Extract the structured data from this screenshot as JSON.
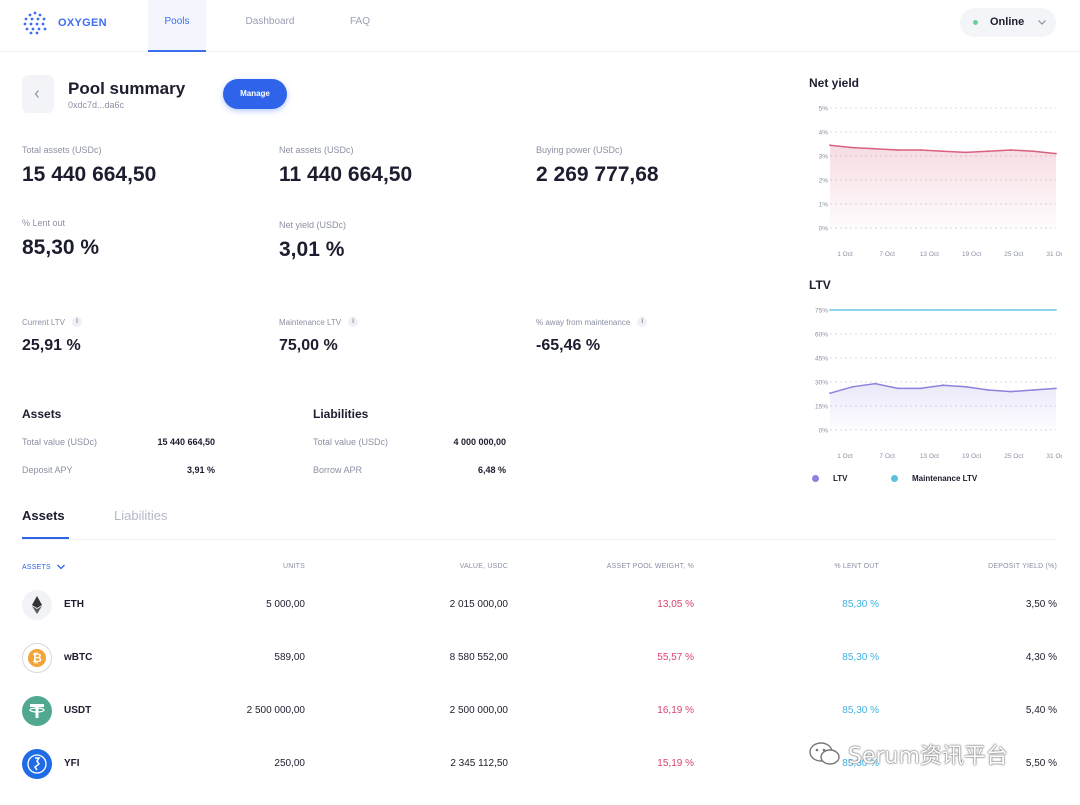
{
  "nav": {
    "brand": "OXYGEN",
    "tabs": [
      "Pools",
      "Dashboard",
      "FAQ"
    ],
    "status": "Online",
    "status_color": "#6ccf9b"
  },
  "header": {
    "title": "Pool summary",
    "address": "0xdc7d...da6c",
    "manage_label": "Manage"
  },
  "stats": {
    "total_assets_label": "Total assets (USDc)",
    "total_assets_value": "15 440 664,50",
    "net_assets_label": "Net assets (USDc)",
    "net_assets_value": "11 440 664,50",
    "buying_power_label": "Buying power (USDc)",
    "buying_power_value": "2 269 777,68",
    "lent_out_label": "% Lent out",
    "lent_out_value": "85,30 %",
    "net_yield_label": "Net yield (USDc)",
    "net_yield_value": "3,01 %",
    "current_ltv_label": "Current LTV",
    "current_ltv_value": "25,91 %",
    "maintenance_ltv_label": "Maintenance LTV",
    "maintenance_ltv_value": "75,00 %",
    "away_label": "% away from maintenance",
    "away_value": "-65,46 %"
  },
  "assets_summary": {
    "title": "Assets",
    "total_label": "Total value (USDc)",
    "total_value": "15 440 664,50",
    "apy_label": "Deposit APY",
    "apy_value": "3,91 %"
  },
  "liabilities_summary": {
    "title": "Liabilities",
    "total_label": "Total value (USDc)",
    "total_value": "4 000 000,00",
    "apr_label": "Borrow APR",
    "apr_value": "6,48 %"
  },
  "charts": {
    "net_yield_title": "Net yield",
    "ltv_title": "LTV",
    "legend_ltv": "LTV",
    "legend_maintenance": "Maintenance LTV",
    "colors": {
      "net_yield": "#d9607f",
      "ltv": "#8b82dc",
      "maintenance": "#7fcbe8"
    }
  },
  "chart_data": [
    {
      "type": "area",
      "title": "Net yield",
      "x": [
        "1 Oct",
        "4 Oct",
        "7 Oct",
        "10 Oct",
        "13 Oct",
        "16 Oct",
        "19 Oct",
        "22 Oct",
        "25 Oct",
        "28 Oct",
        "31 Oct"
      ],
      "x_ticks": [
        "1 Oct",
        "7 Oct",
        "13 Oct",
        "19 Oct",
        "25 Oct",
        "31 Oct"
      ],
      "y_ticks": [
        "5%",
        "4%",
        "3%",
        "2%",
        "1%",
        "0%"
      ],
      "ylim": [
        0,
        5
      ],
      "series": [
        {
          "values": [
            3.45,
            3.35,
            3.3,
            3.25,
            3.25,
            3.2,
            3.15,
            3.2,
            3.25,
            3.2,
            3.1
          ]
        }
      ]
    },
    {
      "type": "line",
      "title": "LTV",
      "x": [
        "1 Oct",
        "4 Oct",
        "7 Oct",
        "10 Oct",
        "13 Oct",
        "16 Oct",
        "19 Oct",
        "22 Oct",
        "25 Oct",
        "28 Oct",
        "31 Oct"
      ],
      "x_ticks": [
        "1 Oct",
        "7 Oct",
        "13 Oct",
        "19 Oct",
        "25 Oct",
        "31 Oct"
      ],
      "y_ticks": [
        "75%",
        "60%",
        "45%",
        "30%",
        "15%",
        "0%"
      ],
      "ylim": [
        0,
        75
      ],
      "series": [
        {
          "name": "LTV",
          "values": [
            23,
            27,
            29,
            26,
            26,
            28,
            27,
            25,
            24,
            25,
            26
          ]
        },
        {
          "name": "Maintenance LTV",
          "values": [
            75,
            75,
            75,
            75,
            75,
            75,
            75,
            75,
            75,
            75,
            75
          ]
        }
      ]
    }
  ],
  "tabs": {
    "assets": "Assets",
    "liabilities": "Liabilities"
  },
  "table": {
    "headers": [
      "ASSETS",
      "UNITS",
      "VALUE, USDC",
      "ASSET POOL WEIGHT, %",
      "% LENT OUT",
      "DEPOSIT YIELD (%)"
    ],
    "rows": [
      {
        "icon": "eth-icon",
        "name": "ETH",
        "units": "5 000,00",
        "value": "2 015 000,00",
        "weight": "13,05 %",
        "lent": "85,30 %",
        "yield": "3,50 %"
      },
      {
        "icon": "btc-icon",
        "name": "wBTC",
        "units": "589,00",
        "value": "8 580 552,00",
        "weight": "55,57 %",
        "lent": "85,30 %",
        "yield": "4,30 %"
      },
      {
        "icon": "tether-icon",
        "name": "USDT",
        "units": "2 500 000,00",
        "value": "2 500 000,00",
        "weight": "16,19 %",
        "lent": "85,30 %",
        "yield": "5,40 %"
      },
      {
        "icon": "yfi-icon",
        "name": "YFI",
        "units": "250,00",
        "value": "2 345 112,50",
        "weight": "15,19 %",
        "lent": "85,30 %",
        "yield": "5,50 %"
      }
    ]
  },
  "watermark": "Serum资讯平台"
}
